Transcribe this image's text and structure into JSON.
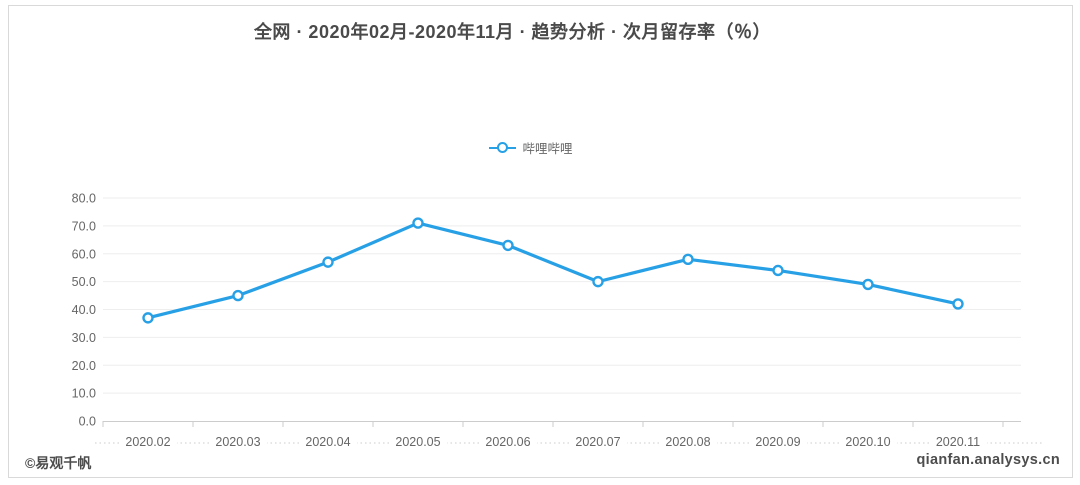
{
  "title": "全网 · 2020年02月-2020年11月 · 趋势分析 · 次月留存率（％）",
  "legend": {
    "label": "哔哩哔哩"
  },
  "footer": {
    "left": "©易观千帆",
    "right": "qianfan.analysys.cn"
  },
  "colors": {
    "accent": "#28a0e6",
    "marker_fill": "#ffffff",
    "grid_line": "#eeeeee",
    "axis_line": "#cccccc",
    "tick_label": "#666666"
  },
  "chart_data": {
    "type": "line",
    "title": "全网 · 2020年02月-2020年11月 · 趋势分析 · 次月留存率（％）",
    "categories": [
      "2020.02",
      "2020.03",
      "2020.04",
      "2020.05",
      "2020.06",
      "2020.07",
      "2020.08",
      "2020.09",
      "2020.10",
      "2020.11"
    ],
    "series": [
      {
        "name": "哔哩哔哩",
        "color": "#28a0e6",
        "values": [
          37,
          45,
          57,
          71,
          63,
          50,
          58,
          54,
          49,
          42
        ]
      }
    ],
    "xlabel": "",
    "ylabel": "次月留存率（％）",
    "ylim": [
      0,
      80
    ],
    "ytick_interval": 10,
    "ytick_decimals": 1,
    "grid": true,
    "legend_position": "top-center"
  }
}
